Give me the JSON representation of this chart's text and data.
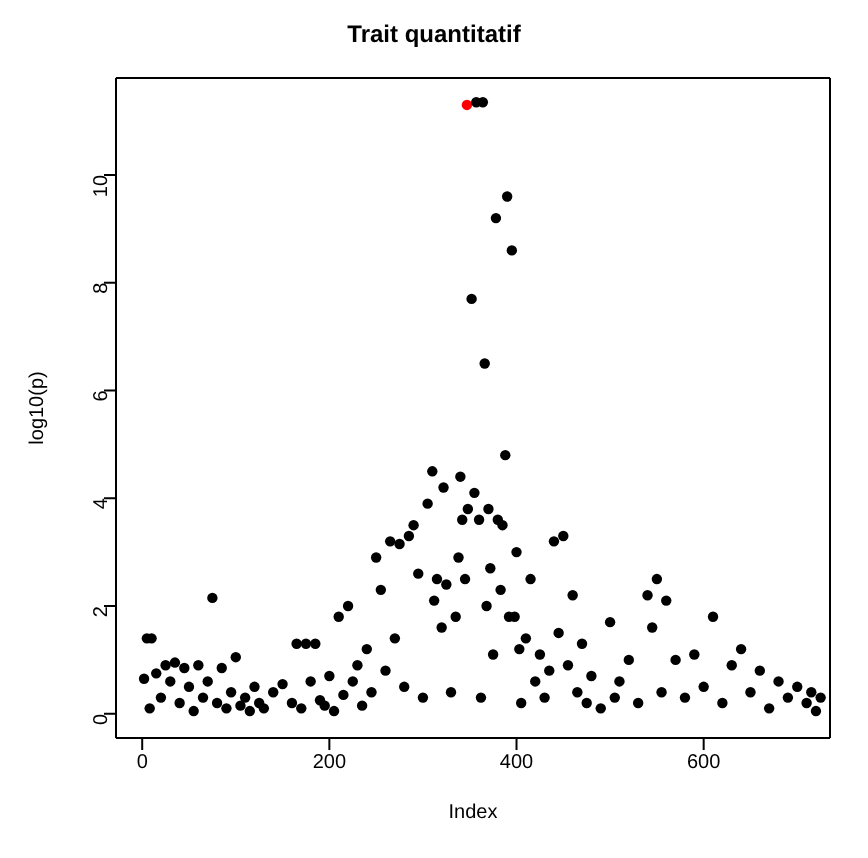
{
  "chart_data": {
    "type": "scatter",
    "title": "Trait quantitatif",
    "xlabel": "Index",
    "ylabel": "log10(p)",
    "xlim": [
      -28,
      735
    ],
    "ylim": [
      -0.45,
      11.8
    ],
    "xticks": [
      0,
      200,
      400,
      600
    ],
    "yticks": [
      0,
      2,
      4,
      6,
      8,
      10
    ],
    "marker": "circle",
    "series": [
      {
        "color": "#000000",
        "x": [
          2,
          5,
          10,
          8,
          15,
          20,
          25,
          30,
          35,
          40,
          45,
          50,
          55,
          60,
          65,
          70,
          75,
          80,
          85,
          90,
          95,
          100,
          105,
          110,
          115,
          120,
          125,
          130,
          140,
          150,
          160,
          165,
          170,
          175,
          180,
          185,
          190,
          195,
          200,
          205,
          210,
          215,
          220,
          225,
          230,
          235,
          240,
          245,
          250,
          255,
          260,
          265,
          270,
          275,
          280,
          285,
          290,
          295,
          300,
          305,
          310,
          312,
          315,
          320,
          322,
          325,
          330,
          335,
          338,
          340,
          342,
          345,
          348,
          352,
          355,
          360,
          362,
          366,
          368,
          370,
          372,
          375,
          378,
          380,
          383,
          385,
          388,
          390,
          392,
          395,
          398,
          400,
          403,
          405,
          410,
          415,
          420,
          425,
          430,
          435,
          440,
          445,
          450,
          455,
          460,
          465,
          470,
          475,
          480,
          490,
          500,
          505,
          510,
          520,
          530,
          540,
          545,
          550,
          555,
          560,
          570,
          580,
          590,
          600,
          610,
          620,
          630,
          640,
          650,
          660,
          670,
          680,
          690,
          700,
          710,
          715,
          720,
          725
        ],
        "values": [
          0.65,
          1.4,
          1.4,
          0.1,
          0.75,
          0.3,
          0.9,
          0.6,
          0.95,
          0.2,
          0.85,
          0.5,
          0.05,
          0.9,
          0.3,
          0.6,
          2.15,
          0.2,
          0.85,
          0.1,
          0.4,
          1.05,
          0.15,
          0.3,
          0.05,
          0.5,
          0.2,
          0.1,
          0.4,
          0.55,
          0.2,
          1.3,
          0.1,
          1.3,
          0.6,
          1.3,
          0.25,
          0.15,
          0.7,
          0.05,
          1.8,
          0.35,
          2.0,
          0.6,
          0.9,
          0.15,
          1.2,
          0.4,
          2.9,
          2.3,
          0.8,
          3.2,
          1.4,
          3.15,
          0.5,
          3.3,
          3.5,
          2.6,
          0.3,
          3.9,
          4.5,
          2.1,
          2.5,
          1.6,
          4.2,
          2.4,
          0.4,
          1.8,
          2.9,
          4.4,
          3.6,
          2.5,
          3.8,
          7.7,
          4.1,
          3.6,
          0.3,
          6.5,
          2.0,
          3.8,
          2.7,
          1.1,
          9.2,
          3.6,
          2.3,
          3.5,
          4.8,
          9.6,
          1.8,
          8.6,
          1.8,
          3.0,
          1.2,
          0.2,
          1.4,
          2.5,
          0.6,
          1.1,
          0.3,
          0.8,
          3.2,
          1.5,
          3.3,
          0.9,
          2.2,
          0.4,
          1.3,
          0.2,
          0.7,
          0.1,
          1.7,
          0.3,
          0.6,
          1.0,
          0.2,
          2.2,
          1.6,
          2.5,
          0.4,
          2.1,
          1.0,
          0.3,
          1.1,
          0.5,
          1.8,
          0.2,
          0.9,
          1.2,
          0.4,
          0.8,
          0.1,
          0.6,
          0.3,
          0.5,
          0.2,
          0.4,
          0.05,
          0.3
        ]
      },
      {
        "color": "#ff0000",
        "x": [
          347
        ],
        "values": [
          11.3
        ]
      },
      {
        "color": "#000000",
        "x": [
          357,
          364
        ],
        "values": [
          11.35,
          11.35
        ]
      }
    ]
  }
}
